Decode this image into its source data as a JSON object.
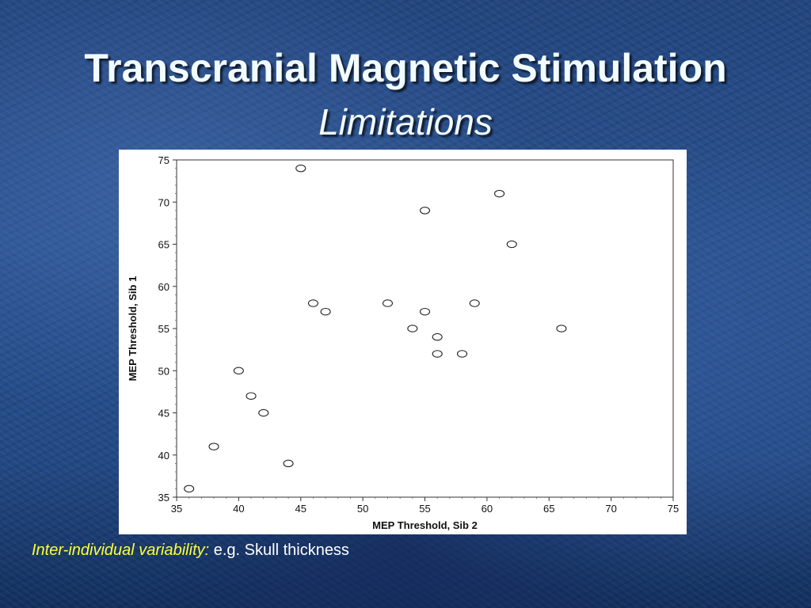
{
  "slide": {
    "title": "Transcranial Magnetic Stimulation",
    "subtitle": "Limitations",
    "caption_lead": "Inter-individual variability:",
    "caption_rest": " e.g. Skull thickness"
  },
  "colors": {
    "title_text": "#f2fbff",
    "caption_lead": "#ffff33",
    "caption_text": "#ffffff",
    "marker_stroke": "#222222"
  },
  "chart_data": {
    "type": "scatter",
    "xlabel": "MEP Threshold, Sib 2",
    "ylabel": "MEP Threshold, Sib 1",
    "xlim": [
      35,
      75
    ],
    "ylim": [
      35,
      75
    ],
    "x_ticks": [
      35,
      40,
      45,
      50,
      55,
      60,
      65,
      70,
      75
    ],
    "y_ticks": [
      35,
      40,
      45,
      50,
      55,
      60,
      65,
      70,
      75
    ],
    "grid": false,
    "marker": "open-circle",
    "points": [
      {
        "x": 36,
        "y": 36
      },
      {
        "x": 38,
        "y": 41
      },
      {
        "x": 40,
        "y": 50
      },
      {
        "x": 41,
        "y": 47
      },
      {
        "x": 42,
        "y": 45
      },
      {
        "x": 44,
        "y": 39
      },
      {
        "x": 45,
        "y": 74
      },
      {
        "x": 46,
        "y": 58
      },
      {
        "x": 47,
        "y": 57
      },
      {
        "x": 52,
        "y": 58
      },
      {
        "x": 54,
        "y": 55
      },
      {
        "x": 55,
        "y": 57
      },
      {
        "x": 55,
        "y": 69
      },
      {
        "x": 56,
        "y": 54
      },
      {
        "x": 56,
        "y": 52
      },
      {
        "x": 58,
        "y": 52
      },
      {
        "x": 59,
        "y": 58
      },
      {
        "x": 61,
        "y": 71
      },
      {
        "x": 62,
        "y": 65
      },
      {
        "x": 66,
        "y": 55
      }
    ]
  }
}
